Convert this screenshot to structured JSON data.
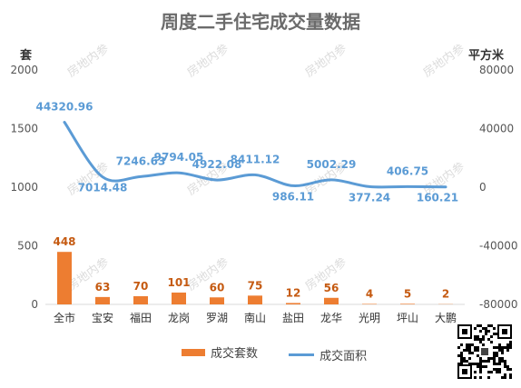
{
  "title": "周度二手住宅成交量数据",
  "left_unit": "套",
  "right_unit": "平方米",
  "watermark_text": "房地内参",
  "legend": {
    "bars": "成交套数",
    "line": "成交面积"
  },
  "colors": {
    "bar": "#ed7d31",
    "line": "#5b9bd5",
    "bar_label": "#c55a11",
    "line_label": "#5b9bd5"
  },
  "chart_data": {
    "type": "bar",
    "categories": [
      "全市",
      "宝安",
      "福田",
      "龙岗",
      "罗湖",
      "南山",
      "盐田",
      "龙华",
      "光明",
      "坪山",
      "大鹏"
    ],
    "series": [
      {
        "name": "成交套数",
        "type": "bar",
        "axis": "left",
        "values": [
          448,
          63,
          70,
          101,
          60,
          75,
          12,
          56,
          4,
          5,
          2
        ]
      },
      {
        "name": "成交面积",
        "type": "line",
        "axis": "right",
        "values": [
          44320.96,
          7014.48,
          7246.63,
          9794.05,
          4922.08,
          8411.12,
          986.11,
          5002.29,
          377.24,
          406.75,
          160.21
        ]
      }
    ],
    "left_axis": {
      "ylim": [
        0,
        2000
      ],
      "ticks": [
        0,
        500,
        1000,
        1500,
        2000
      ]
    },
    "right_axis": {
      "ylim": [
        -80000,
        80000
      ],
      "ticks": [
        -80000,
        -40000,
        0,
        40000,
        80000
      ]
    },
    "grid": false,
    "legend_position": "bottom"
  }
}
